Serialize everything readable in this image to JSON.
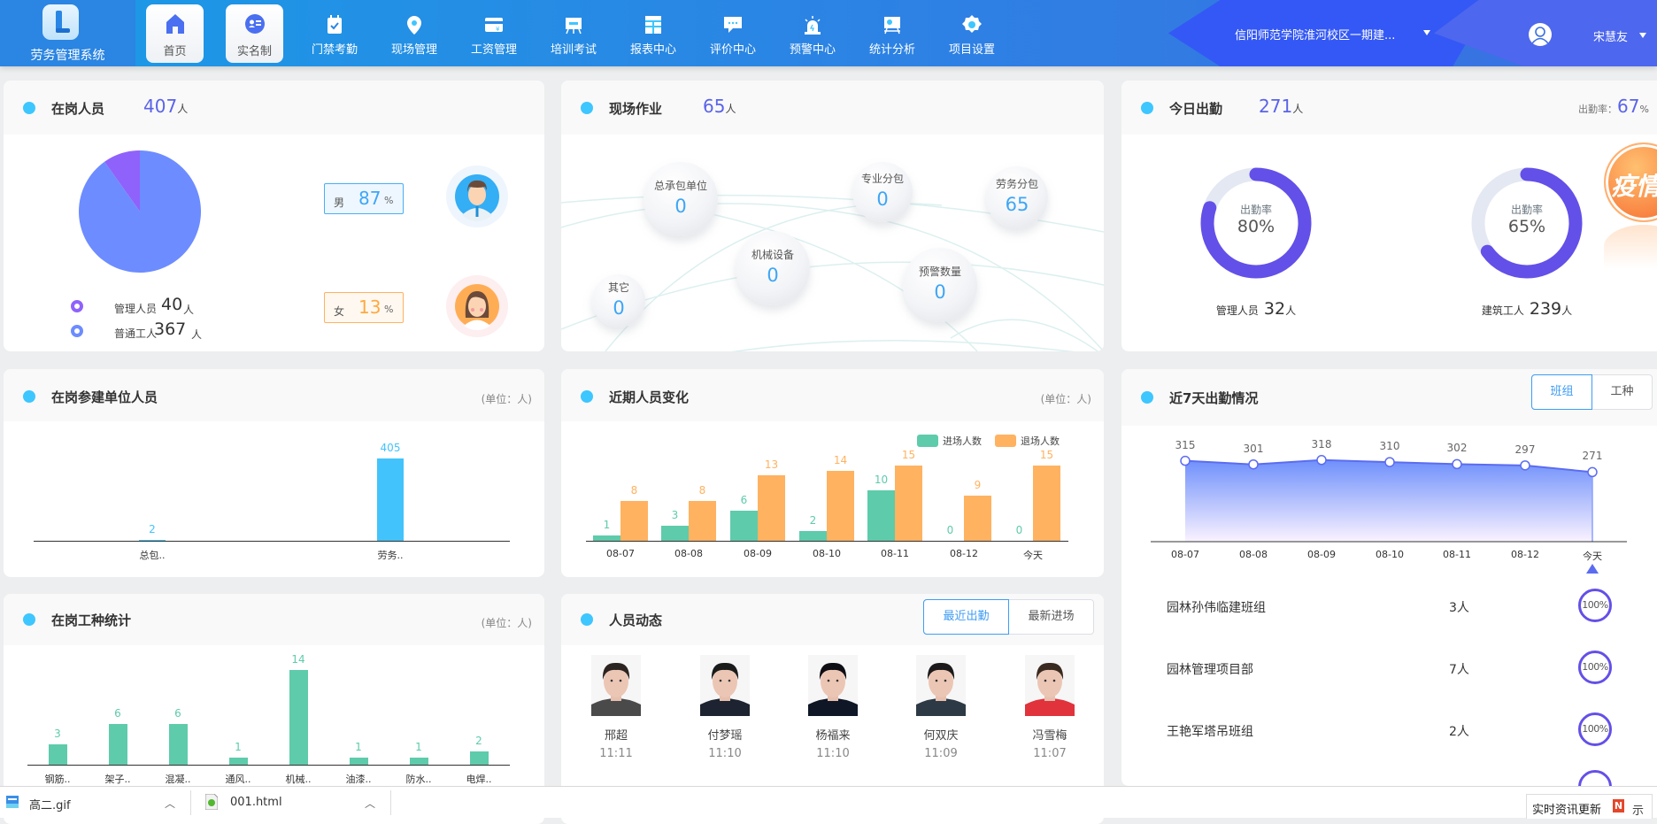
{
  "app": {
    "title": "劳务管理系统",
    "logo_letter": "L"
  },
  "nav": {
    "home": "首页",
    "realname": "实名制",
    "items": [
      {
        "label": "门禁考勤",
        "icon": "calendar-check-icon"
      },
      {
        "label": "现场管理",
        "icon": "location-pin-icon"
      },
      {
        "label": "工资管理",
        "icon": "wallet-icon"
      },
      {
        "label": "培训考试",
        "icon": "training-board-icon"
      },
      {
        "label": "报表中心",
        "icon": "report-grid-icon"
      },
      {
        "label": "评价中心",
        "icon": "chat-bubble-icon"
      },
      {
        "label": "预警中心",
        "icon": "alarm-light-icon"
      },
      {
        "label": "统计分析",
        "icon": "stats-board-icon"
      },
      {
        "label": "项目设置",
        "icon": "gear-icon"
      }
    ],
    "project": "信阳师范学院淮河校区一期建...",
    "user": "宋慧友"
  },
  "onsite": {
    "title": "在岗人员",
    "count": "407",
    "unit": "人",
    "legend": [
      {
        "label": "管理人员",
        "value": "40",
        "unit": "人",
        "color": "#8f62fb"
      },
      {
        "label": "普通工人",
        "value": "367",
        "unit": "人",
        "color": "#6d8cff"
      }
    ],
    "male": {
      "label": "男",
      "pct": "87",
      "sign": "%"
    },
    "female": {
      "label": "女",
      "pct": "13",
      "sign": "%"
    }
  },
  "field": {
    "title": "现场作业",
    "count": "65",
    "unit": "人",
    "bubbles": [
      {
        "label": "总承包单位",
        "value": "0"
      },
      {
        "label": "专业分包",
        "value": "0"
      },
      {
        "label": "劳务分包",
        "value": "65"
      },
      {
        "label": "机械设备",
        "value": "0"
      },
      {
        "label": "预警数量",
        "value": "0"
      },
      {
        "label": "其它",
        "value": "0"
      }
    ]
  },
  "today": {
    "title": "今日出勤",
    "count": "271",
    "unit": "人",
    "rate_label": "出勤率：",
    "rate": "67",
    "rate_sign": "%",
    "donuts": [
      {
        "inner": "出勤率",
        "pct": 80,
        "pct_text": "80%",
        "label": "管理人员",
        "value": "32",
        "unit": "人"
      },
      {
        "inner": "出勤率",
        "pct": 65,
        "pct_text": "65%",
        "label": "建筑工人",
        "value": "239",
        "unit": "人"
      }
    ],
    "badge": "疫情"
  },
  "units": {
    "title": "在岗参建单位人员",
    "unit_note": "(单位：人)",
    "categories": [
      "总包..",
      "劳务.."
    ],
    "values": [
      2,
      405
    ],
    "color": "#43c3fb"
  },
  "recent": {
    "title": "近期人员变化",
    "unit_note": "(单位：人)",
    "categories": [
      "08-07",
      "08-08",
      "08-09",
      "08-10",
      "08-11",
      "08-12",
      "今天"
    ],
    "series": [
      {
        "name": "进场人数",
        "values": [
          1,
          3,
          6,
          2,
          10,
          0,
          0
        ],
        "color": "#5ecbab"
      },
      {
        "name": "退场人数",
        "values": [
          8,
          8,
          13,
          14,
          15,
          9,
          15
        ],
        "color": "#ffb260"
      }
    ]
  },
  "week": {
    "title": "近7天出勤情况",
    "tabs": [
      "班组",
      "工种"
    ],
    "categories": [
      "08-07",
      "08-08",
      "08-09",
      "08-10",
      "08-11",
      "08-12",
      "今天"
    ],
    "values": [
      315,
      301,
      318,
      310,
      302,
      297,
      271
    ],
    "color": "#5b6cf0",
    "rows": [
      {
        "name": "园林孙伟临建班组",
        "count": "3人",
        "rate": "100%"
      },
      {
        "name": "园林管理项目部",
        "count": "7人",
        "rate": "100%"
      },
      {
        "name": "王艳军塔吊班组",
        "count": "2人",
        "rate": "100%"
      }
    ]
  },
  "trades": {
    "title": "在岗工种统计",
    "unit_note": "(单位：人)",
    "categories": [
      "钢筋..",
      "架子..",
      "混凝..",
      "通风..",
      "机械..",
      "油漆..",
      "防水..",
      "电焊.."
    ],
    "values": [
      3,
      6,
      6,
      1,
      14,
      1,
      1,
      2
    ],
    "color": "#5ecbab"
  },
  "dynamics": {
    "title": "人员动态",
    "tabs": [
      "最近出勤",
      "最新进场"
    ],
    "people": [
      {
        "name": "邢超",
        "time": "11:11"
      },
      {
        "name": "付梦瑶",
        "time": "11:10"
      },
      {
        "name": "杨福来",
        "time": "11:10"
      },
      {
        "name": "何双庆",
        "time": "11:09"
      },
      {
        "name": "冯雪梅",
        "time": "11:07"
      }
    ]
  },
  "taskbar": {
    "downloads": [
      {
        "name": "高二.gif"
      },
      {
        "name": "001.html"
      }
    ],
    "news": "实时资讯更新",
    "news_badge": "N",
    "tail": "示"
  }
}
